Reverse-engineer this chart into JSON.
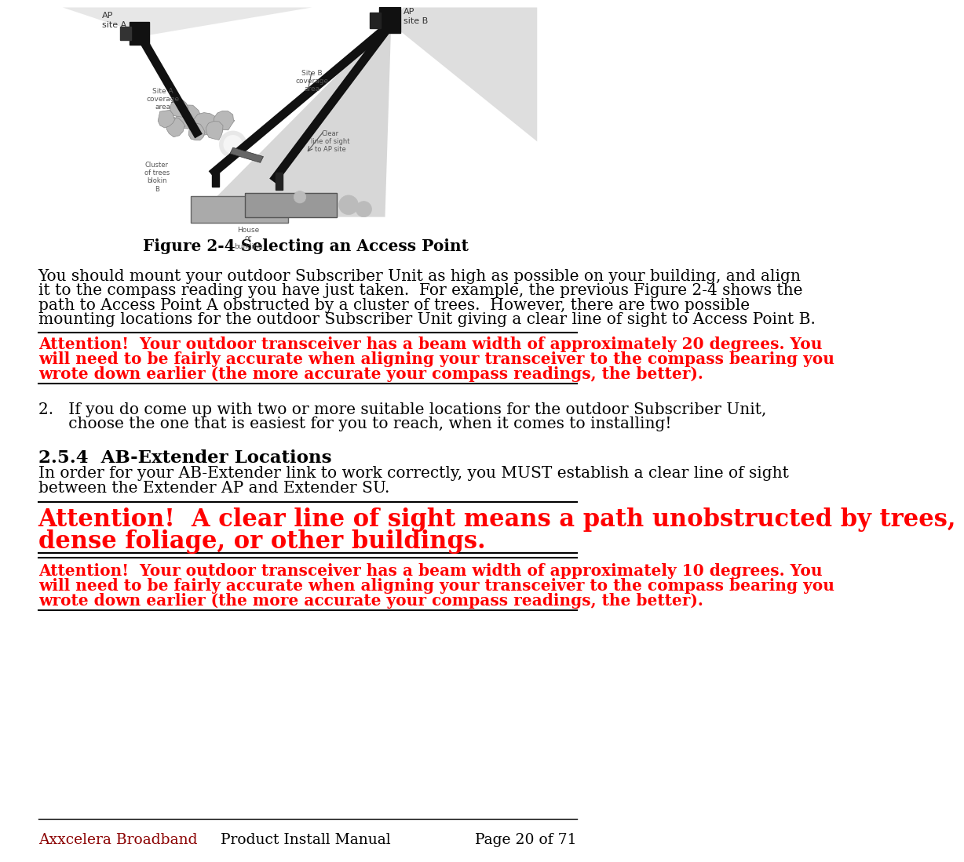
{
  "bg_color": "#ffffff",
  "text_color": "#000000",
  "red_color": "#ff0000",
  "dark_red_color": "#8b0000",
  "figure_caption": "Figure 2-4 Selecting an Access Point",
  "para1_lines": [
    "You should mount your outdoor Subscriber Unit as high as possible on your building, and align",
    "it to the compass reading you have just taken.  For example, the previous Figure 2-4 shows the",
    "path to Access Point A obstructed by a cluster of trees.  However, there are two possible",
    "mounting locations for the outdoor Subscriber Unit giving a clear line of sight to Access Point B."
  ],
  "attention1_line1": "Attention!  Your outdoor transceiver has a beam width of approximately 20 degrees. You",
  "attention1_line2": "will need to be fairly accurate when aligning your transceiver to the compass bearing you",
  "attention1_line3": "wrote down earlier (the more accurate your compass readings, the better).",
  "para2_line1": "2.   If you do come up with two or more suitable locations for the outdoor Subscriber Unit,",
  "para2_line2": "      choose the one that is easiest for you to reach, when it comes to installing!",
  "section_heading": "2.5.4  AB-Extender Locations",
  "para3_line1": "In order for your AB-Extender link to work correctly, you MUST establish a clear line of sight",
  "para3_line2": "between the Extender AP and Extender SU.",
  "attention2_line1": "Attention!  A clear line of sight means a path unobstructed by trees,",
  "attention2_line2": "dense foliage, or other buildings.",
  "attention3_line1": "Attention!  Your outdoor transceiver has a beam width of approximately 10 degrees. You",
  "attention3_line2": "will need to be fairly accurate when aligning your transceiver to the compass bearing you",
  "attention3_line3": "wrote down earlier (the more accurate your compass readings, the better).",
  "footer_left": "Axxcelera Broadband",
  "footer_center": "Product Install Manual",
  "footer_right": "Page 20 of 71",
  "lm": 50,
  "rm": 935,
  "body_fs": 14.5,
  "caption_fs": 14.5,
  "section_fs": 16.5,
  "attn2_fs": 22.0,
  "footer_fs": 13.5,
  "body_lh": 24,
  "attn_lh": 25,
  "attn2_lh": 36,
  "section_lh": 28
}
